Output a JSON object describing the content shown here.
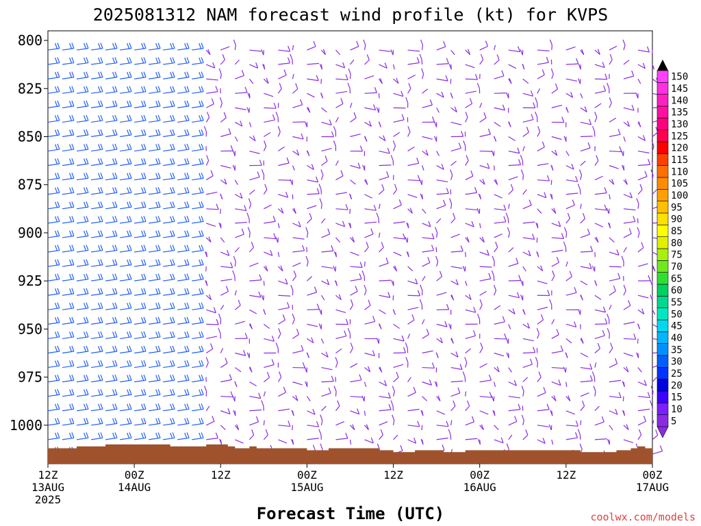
{
  "chart_data": {
    "type": "wind-barb-profile",
    "title": "2025081312 NAM forecast wind profile (kt) for KVPS",
    "xlabel": "Forecast Time (UTC)",
    "ylabel": "",
    "credit": "coolwx.com/models",
    "y_ticks": [
      "800",
      "825",
      "850",
      "875",
      "900",
      "925",
      "950",
      "975",
      "1000"
    ],
    "y_tick_values": [
      800,
      825,
      850,
      875,
      900,
      925,
      950,
      975,
      1000
    ],
    "ylim": [
      795,
      1020
    ],
    "x_ticks": [
      {
        "hours": 0,
        "lines": [
          "12Z",
          "13AUG",
          "2025"
        ]
      },
      {
        "hours": 12,
        "lines": [
          "00Z",
          "14AUG"
        ]
      },
      {
        "hours": 24,
        "lines": [
          "12Z"
        ]
      },
      {
        "hours": 36,
        "lines": [
          "00Z",
          "15AUG"
        ]
      },
      {
        "hours": 48,
        "lines": [
          "12Z"
        ]
      },
      {
        "hours": 60,
        "lines": [
          "00Z",
          "16AUG"
        ]
      },
      {
        "hours": 72,
        "lines": [
          "12Z"
        ]
      },
      {
        "hours": 84,
        "lines": [
          "00Z",
          "17AUG"
        ]
      }
    ],
    "xlim_hours": [
      0,
      84
    ],
    "colorbar": {
      "labels": [
        "5",
        "10",
        "15",
        "20",
        "25",
        "30",
        "35",
        "40",
        "45",
        "50",
        "55",
        "60",
        "65",
        "70",
        "75",
        "80",
        "85",
        "90",
        "95",
        "100",
        "105",
        "110",
        "115",
        "120",
        "125",
        "130",
        "135",
        "140",
        "145",
        "150"
      ],
      "colors": [
        "#8a2be2",
        "#7a1fff",
        "#3d00ff",
        "#0000e0",
        "#0033ff",
        "#0060ff",
        "#0090ff",
        "#00b6ff",
        "#00d8f0",
        "#00e8c0",
        "#00d890",
        "#00d060",
        "#30e030",
        "#70e820",
        "#a8f010",
        "#e0f000",
        "#ffff00",
        "#ffe000",
        "#ffc000",
        "#ffa000",
        "#ff8c00",
        "#ff7000",
        "#ff4000",
        "#ff0000",
        "#ff0050",
        "#ff0080",
        "#ff10a0",
        "#ff20c0",
        "#ff30e0",
        "#ff40ff"
      ]
    },
    "surface_color": "#a0522d",
    "bg_color": "#ffffff",
    "barb_color_weak": "#8a2be2",
    "barb_color_strong": "#1e5eff",
    "surface_pressure_hpa": [
      1012,
      1012,
      1012,
      1012,
      1011,
      1011,
      1011,
      1011,
      1010,
      1010,
      1010,
      1010,
      1010,
      1010,
      1010,
      1010,
      1010,
      1011,
      1011,
      1011,
      1011,
      1011,
      1010,
      1010,
      1010,
      1011,
      1012,
      1012,
      1011,
      1012,
      1012,
      1012,
      1012,
      1012,
      1012,
      1012,
      1013,
      1013,
      1013,
      1012,
      1012,
      1012,
      1012,
      1012,
      1012,
      1012,
      1013,
      1013,
      1014,
      1014,
      1014,
      1013,
      1013,
      1013,
      1013,
      1014,
      1014,
      1014,
      1013,
      1013,
      1013,
      1013,
      1013,
      1013,
      1013,
      1013,
      1013,
      1013,
      1013,
      1013,
      1013,
      1013,
      1013,
      1013,
      1014,
      1014,
      1014,
      1014,
      1014,
      1013,
      1013,
      1012,
      1011,
      1012,
      1012
    ]
  }
}
